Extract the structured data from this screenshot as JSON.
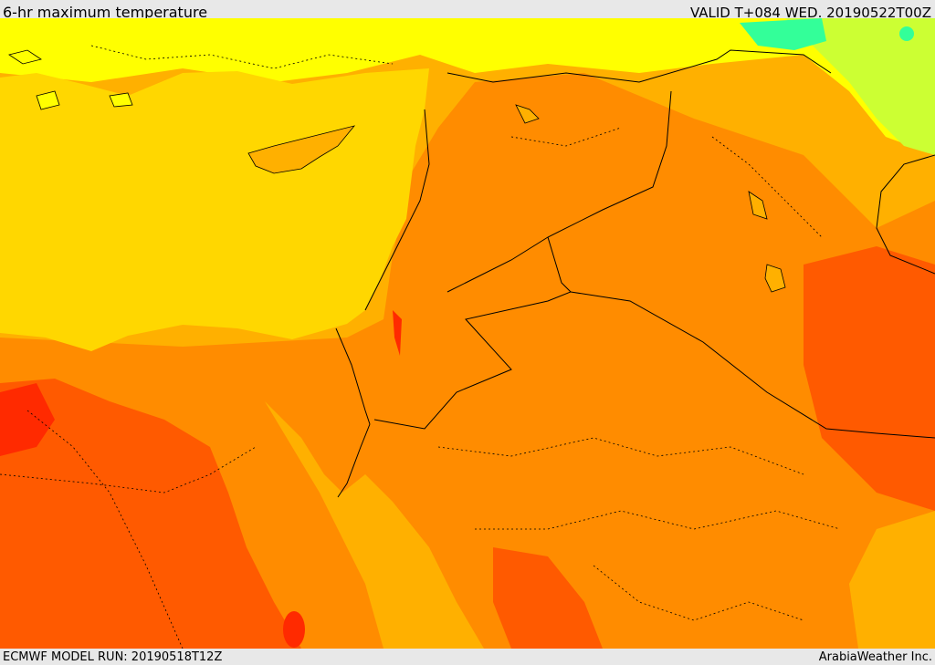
{
  "header": {
    "title": "6-hr maximum temperature",
    "valid": "VALID T+084 WED. 20190522T00Z"
  },
  "footer": {
    "model_run": "ECMWF MODEL RUN: 20190518T12Z",
    "credit": "ArabiaWeather Inc."
  },
  "colors": {
    "sea": "#ffd700",
    "hot": "#ff8c00",
    "very_hot": "#ff5a00",
    "extreme": "#ff2a00",
    "warm": "#ffb000",
    "mild": "#ffff00",
    "cool": "#ccff33",
    "cold": "#33ff99",
    "boundary": "#000000"
  }
}
